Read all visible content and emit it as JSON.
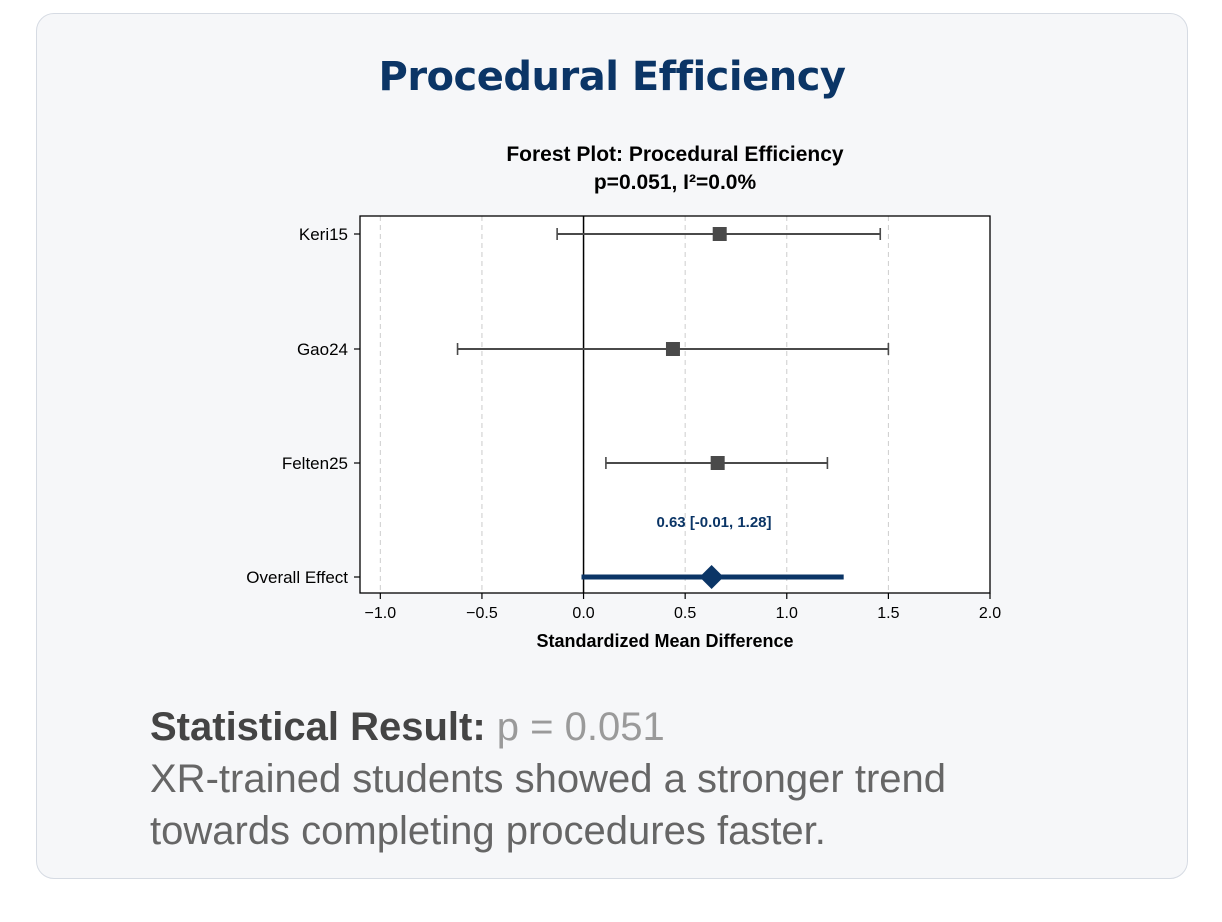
{
  "card": {
    "title": "Procedural Efficiency"
  },
  "result": {
    "label": "Statistical Result:",
    "value": "p = 0.051",
    "description_line1": "XR-trained students showed a stronger trend",
    "description_line2": "towards completing procedures faster."
  },
  "colors": {
    "title": "#0b3566",
    "study_marker": "#4a4a4a",
    "overall": "#0b3566",
    "grid": "#cccccc"
  },
  "chart_data": {
    "type": "forest",
    "title": "Forest Plot: Procedural Efficiency",
    "subtitle": "p=0.051, I²=0.0%",
    "xlabel": "Standardized Mean Difference",
    "ylabel": "",
    "xlim": [
      -1.1,
      2.0
    ],
    "xticks": [
      -1.0,
      -0.5,
      0.0,
      0.5,
      1.0,
      1.5,
      2.0
    ],
    "xtick_labels": [
      "−1.0",
      "−0.5",
      "0.0",
      "0.5",
      "1.0",
      "1.5",
      "2.0"
    ],
    "grid": "vertical dashed",
    "reference_line": 0.0,
    "studies": [
      {
        "name": "Keri15",
        "estimate": 0.67,
        "ci_low": -0.13,
        "ci_high": 1.46
      },
      {
        "name": "Gao24",
        "estimate": 0.44,
        "ci_low": -0.62,
        "ci_high": 1.5
      },
      {
        "name": "Felten25",
        "estimate": 0.66,
        "ci_low": 0.11,
        "ci_high": 1.2
      }
    ],
    "overall": {
      "name": "Overall Effect",
      "estimate": 0.63,
      "ci_low": -0.01,
      "ci_high": 1.28,
      "label": "0.63 [-0.01, 1.28]"
    }
  }
}
